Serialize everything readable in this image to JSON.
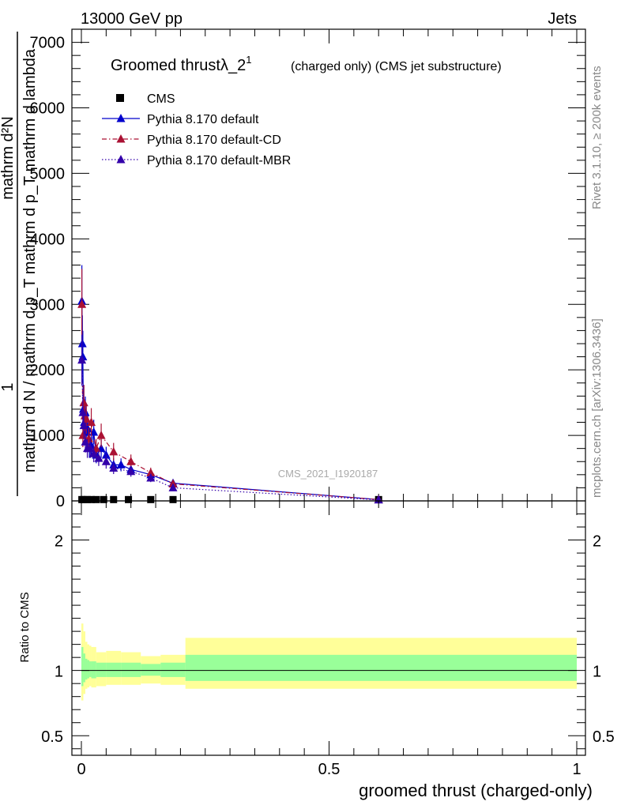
{
  "header": {
    "left": "13000 GeV pp",
    "right": "Jets"
  },
  "side_labels": {
    "rivet": "Rivet 3.1.10, ≥ 200k events",
    "mcplots": "mcplots.cern.ch [arXiv:1306.3436]"
  },
  "watermark": "CMS_2021_I1920187",
  "chart_data": [
    {
      "type": "line",
      "title": "Groomed thrustλ_2",
      "title_sup": "1",
      "subtitle": "(charged only) (CMS jet substructure)",
      "xlabel": "groomed thrust (charged-only)",
      "ylabel_top": "1",
      "ylabel_numerator": "mathrm d²N",
      "ylabel_denominator": "mathrm d N / mathrm d p_T mathrm d p_T mathrm d lambda",
      "xlim": [
        0,
        1
      ],
      "ylim": [
        0,
        7200
      ],
      "yticks": [
        0,
        1000,
        2000,
        3000,
        4000,
        5000,
        6000,
        7000
      ],
      "ytick_labels": [
        "0",
        "1000",
        "2000",
        "3000",
        "4000",
        "5000",
        "6000",
        "7000"
      ],
      "grid": false,
      "legend_position": "top-left",
      "series": [
        {
          "name": "CMS",
          "color": "#000000",
          "marker": "square",
          "x": [
            0.001,
            0.005,
            0.012,
            0.02,
            0.03,
            0.045,
            0.065,
            0.095,
            0.14,
            0.185,
            0.6
          ],
          "y": [
            20,
            20,
            20,
            20,
            20,
            20,
            20,
            20,
            20,
            20,
            20
          ]
        },
        {
          "name": "Pythia 8.170 default",
          "color": "#0000cc",
          "marker": "triangle",
          "line": "solid",
          "x": [
            0.001,
            0.002,
            0.003,
            0.004,
            0.005,
            0.006,
            0.008,
            0.01,
            0.013,
            0.016,
            0.02,
            0.025,
            0.03,
            0.04,
            0.05,
            0.065,
            0.08,
            0.1,
            0.14,
            0.185,
            0.6
          ],
          "y": [
            3050,
            2400,
            2200,
            1400,
            1500,
            1200,
            1350,
            1050,
            1100,
            800,
            850,
            1050,
            700,
            800,
            700,
            550,
            550,
            480,
            400,
            270,
            20
          ]
        },
        {
          "name": "Pythia 8.170 default-CD",
          "color": "#aa1133",
          "marker": "triangle",
          "line": "dash-dot",
          "x": [
            0.001,
            0.003,
            0.005,
            0.007,
            0.01,
            0.015,
            0.02,
            0.03,
            0.04,
            0.065,
            0.1,
            0.14,
            0.185,
            0.6
          ],
          "y": [
            3000,
            1000,
            1500,
            1300,
            1250,
            950,
            1200,
            800,
            1000,
            750,
            600,
            430,
            260,
            20
          ]
        },
        {
          "name": "Pythia 8.170 default-MBR",
          "color": "#3300aa",
          "marker": "triangle",
          "line": "dotted",
          "x": [
            0.001,
            0.003,
            0.005,
            0.008,
            0.012,
            0.018,
            0.025,
            0.035,
            0.05,
            0.065,
            0.1,
            0.14,
            0.185,
            0.6
          ],
          "y": [
            2150,
            1350,
            1150,
            900,
            800,
            800,
            720,
            650,
            600,
            500,
            450,
            350,
            200,
            15
          ]
        }
      ]
    },
    {
      "type": "area",
      "ylabel": "Ratio to CMS",
      "xlim": [
        0,
        1
      ],
      "ylim": [
        0.35,
        2.3
      ],
      "yticks": [
        0.5,
        1,
        2
      ],
      "ytick_labels": [
        "0.5",
        "1",
        "2"
      ],
      "xticks": [
        0,
        0.5,
        1
      ],
      "xtick_labels": [
        "0",
        "0.5",
        "1"
      ],
      "reference_line": 1,
      "bands": [
        {
          "color": "#ffff99",
          "edges": [
            0,
            0.004,
            0.008,
            0.012,
            0.016,
            0.02,
            0.03,
            0.05,
            0.08,
            0.12,
            0.16,
            0.21,
            1.0
          ],
          "lo": [
            0.77,
            0.82,
            0.86,
            0.87,
            0.88,
            0.87,
            0.88,
            0.89,
            0.89,
            0.9,
            0.89,
            0.86
          ],
          "hi": [
            1.36,
            1.3,
            1.22,
            1.2,
            1.19,
            1.18,
            1.14,
            1.15,
            1.14,
            1.11,
            1.12,
            1.25
          ]
        },
        {
          "color": "#99ff99",
          "edges": [
            0,
            0.004,
            0.008,
            0.012,
            0.016,
            0.02,
            0.03,
            0.05,
            0.08,
            0.12,
            0.16,
            0.21,
            1.0
          ],
          "lo": [
            0.88,
            0.91,
            0.93,
            0.94,
            0.95,
            0.94,
            0.95,
            0.95,
            0.95,
            0.96,
            0.95,
            0.92
          ],
          "hi": [
            1.18,
            1.13,
            1.09,
            1.08,
            1.07,
            1.07,
            1.06,
            1.06,
            1.06,
            1.05,
            1.06,
            1.12
          ]
        }
      ]
    }
  ]
}
